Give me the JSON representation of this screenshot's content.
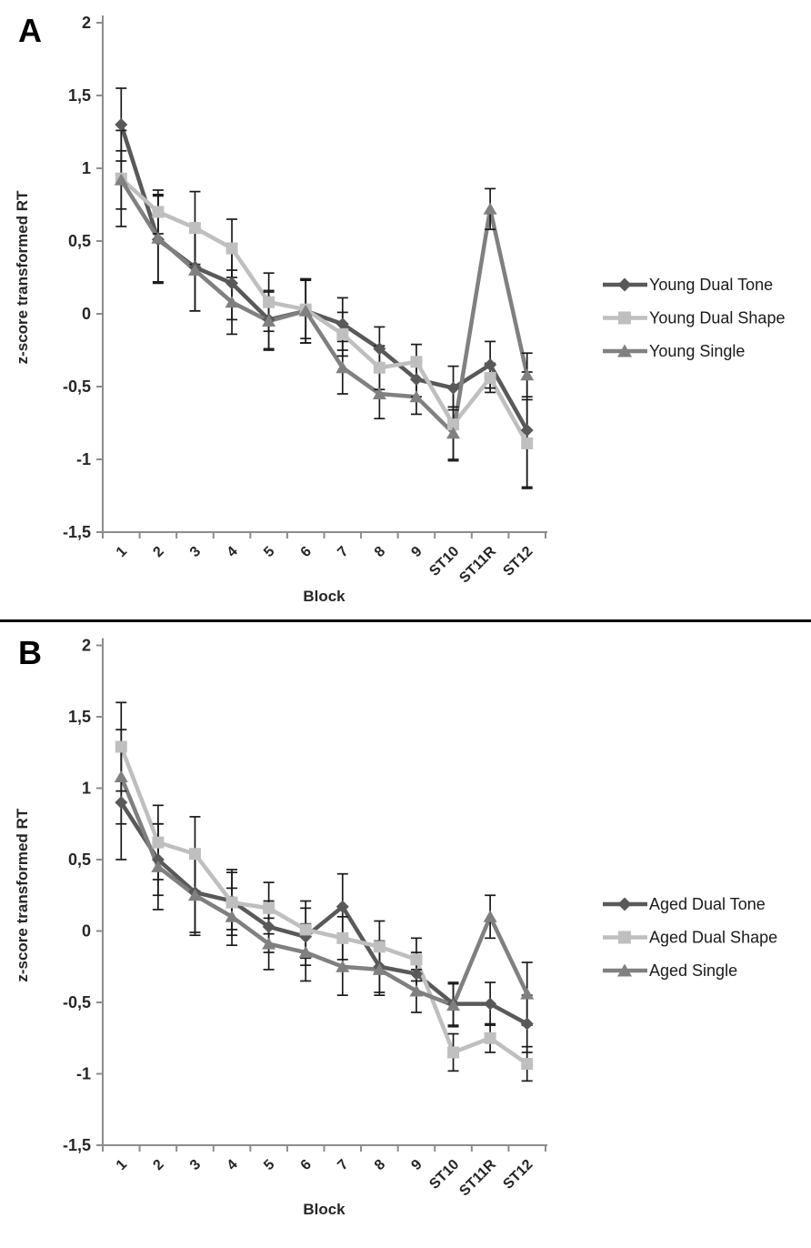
{
  "figure": {
    "background": "#ffffff",
    "divider_color": "#000000",
    "text_color": "#262626",
    "axis_color": "#8c8c8c",
    "error_bar_color": "#1a1a1a"
  },
  "chart_data": [
    {
      "type": "line",
      "panel_label": "A",
      "ylabel": "z-score transformed RT",
      "xlabel": "Block",
      "ylim": [
        -1.5,
        2
      ],
      "ytick_step": 0.5,
      "ytick_labels": [
        "2",
        "1,5",
        "1",
        "0,5",
        "0",
        "-0,5",
        "-1",
        "-1,5"
      ],
      "categories": [
        "1",
        "2",
        "3",
        "4",
        "5",
        "6",
        "7",
        "8",
        "9",
        "ST10",
        "ST11R",
        "ST12"
      ],
      "grid": false,
      "legend_position": "right",
      "series": [
        {
          "name": "Young Dual Tone",
          "marker": "diamond",
          "color": "#595959",
          "values": [
            1.3,
            0.51,
            0.32,
            0.21,
            -0.04,
            0.02,
            -0.07,
            -0.24,
            -0.45,
            -0.51,
            -0.35,
            -0.8
          ],
          "errors": [
            0.25,
            0.3,
            0.3,
            0.25,
            0.2,
            0.22,
            0.18,
            0.15,
            0.12,
            0.15,
            0.16,
            0.4
          ]
        },
        {
          "name": "Young Dual Shape",
          "marker": "square",
          "color": "#bfbfbf",
          "values": [
            0.93,
            0.7,
            0.59,
            0.45,
            0.08,
            0.03,
            -0.14,
            -0.37,
            -0.33,
            -0.76,
            -0.44,
            -0.89
          ],
          "errors": [
            0.33,
            0.15,
            0.25,
            0.2,
            0.2,
            0.2,
            0.15,
            0.15,
            0.12,
            0.25,
            0.1,
            0.3
          ]
        },
        {
          "name": "Young Single",
          "marker": "triangle",
          "color": "#808080",
          "values": [
            0.92,
            0.52,
            0.3,
            0.08,
            -0.05,
            0.02,
            -0.37,
            -0.55,
            -0.57,
            -0.82,
            0.72,
            -0.42
          ],
          "errors": [
            0.2,
            0.3,
            0.28,
            0.22,
            0.2,
            0.22,
            0.18,
            0.17,
            0.12,
            0.18,
            0.14,
            0.15
          ]
        }
      ]
    },
    {
      "type": "line",
      "panel_label": "B",
      "ylabel": "z-score transformed RT",
      "xlabel": "Block",
      "ylim": [
        -1.5,
        2
      ],
      "ytick_step": 0.5,
      "ytick_labels": [
        "2",
        "1,5",
        "1",
        "0,5",
        "0",
        "-0,5",
        "-1",
        "-1,5"
      ],
      "categories": [
        "1",
        "2",
        "3",
        "4",
        "5",
        "6",
        "7",
        "8",
        "9",
        "ST10",
        "ST11R",
        "ST12"
      ],
      "grid": false,
      "legend_position": "right",
      "series": [
        {
          "name": "Aged Dual Tone",
          "marker": "diamond",
          "color": "#595959",
          "values": [
            0.9,
            0.5,
            0.27,
            0.21,
            0.03,
            -0.04,
            0.17,
            -0.25,
            -0.3,
            -0.51,
            -0.51,
            -0.65
          ],
          "errors": [
            0.4,
            0.25,
            0.28,
            0.2,
            0.18,
            0.2,
            0.23,
            0.18,
            0.15,
            0.15,
            0.15,
            0.2
          ]
        },
        {
          "name": "Aged Dual Shape",
          "marker": "square",
          "color": "#bfbfbf",
          "values": [
            1.29,
            0.62,
            0.54,
            0.2,
            0.16,
            0.01,
            -0.05,
            -0.11,
            -0.2,
            -0.85,
            -0.75,
            -0.93
          ],
          "errors": [
            0.31,
            0.26,
            0.26,
            0.23,
            0.18,
            0.2,
            0.15,
            0.18,
            0.15,
            0.13,
            0.1,
            0.12
          ]
        },
        {
          "name": "Aged Single",
          "marker": "triangle",
          "color": "#808080",
          "values": [
            1.08,
            0.45,
            0.25,
            0.1,
            -0.09,
            -0.15,
            -0.25,
            -0.27,
            -0.42,
            -0.52,
            0.1,
            -0.44
          ],
          "errors": [
            0.33,
            0.3,
            0.28,
            0.2,
            0.18,
            0.2,
            0.2,
            0.18,
            0.15,
            0.15,
            0.15,
            0.22
          ]
        }
      ]
    }
  ]
}
